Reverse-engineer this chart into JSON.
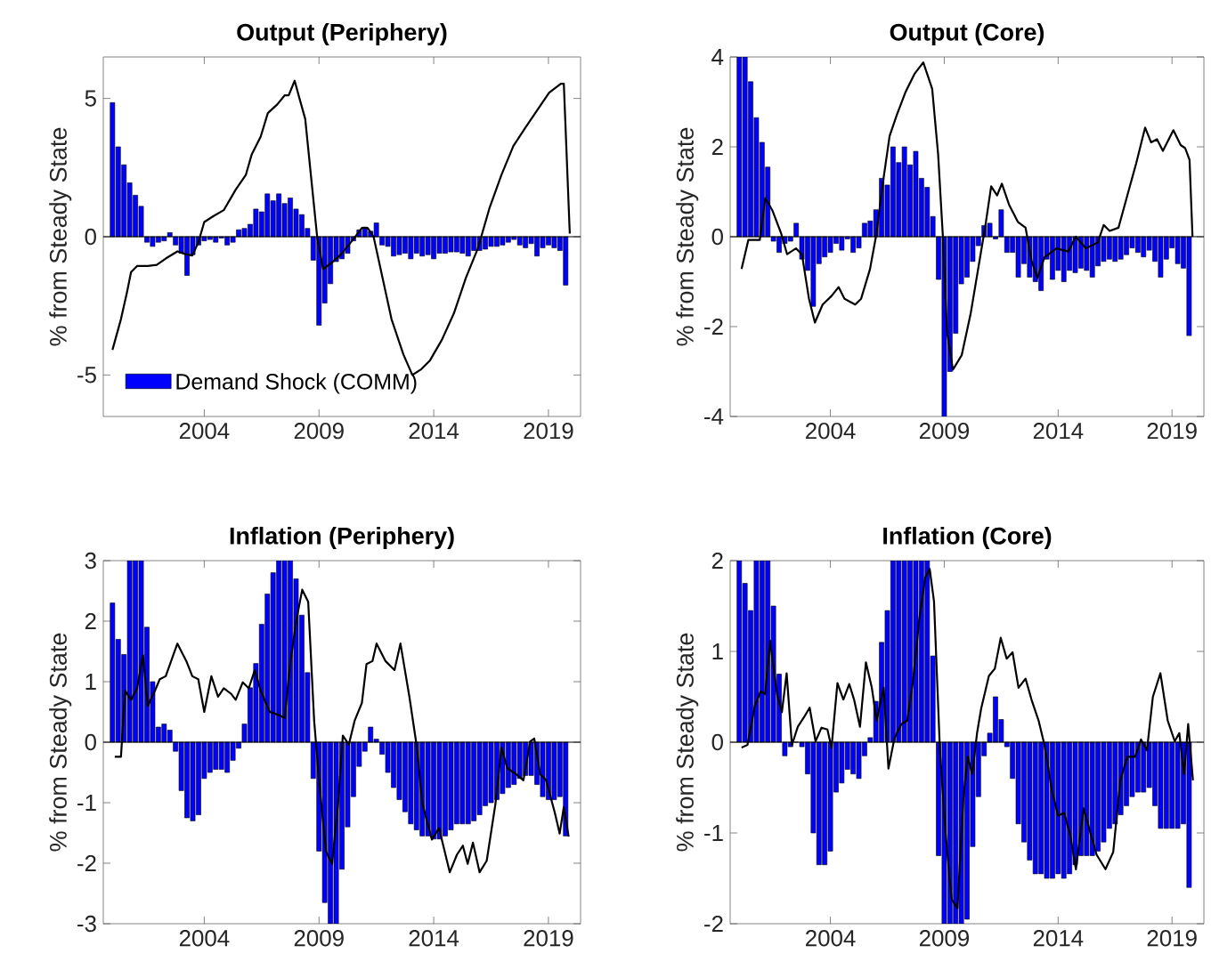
{
  "chart_data": [
    {
      "type": "bar",
      "title": "Output (Periphery)",
      "ylabel": "% from Steady State",
      "xlim": [
        1999.6,
        2020.4
      ],
      "ylim": [
        -6.5,
        6.5
      ],
      "xticks": [
        2004,
        2009,
        2014,
        2019
      ],
      "yticks": [
        -5,
        0,
        5
      ],
      "legend": "bottom left",
      "ref_lines": [
        {
          "axis": "y",
          "value": 0,
          "color": "#000000"
        }
      ],
      "x": [
        2000,
        2000.25,
        2000.5,
        2000.75,
        2001,
        2001.25,
        2001.5,
        2001.75,
        2002,
        2002.25,
        2002.5,
        2002.75,
        2003,
        2003.25,
        2003.5,
        2003.75,
        2004,
        2004.25,
        2004.5,
        2004.75,
        2005,
        2005.25,
        2005.5,
        2005.75,
        2006,
        2006.25,
        2006.5,
        2006.75,
        2007,
        2007.25,
        2007.5,
        2007.75,
        2008,
        2008.25,
        2008.5,
        2008.75,
        2009,
        2009.25,
        2009.5,
        2009.75,
        2010,
        2010.25,
        2010.5,
        2010.75,
        2011,
        2011.25,
        2011.5,
        2011.75,
        2012,
        2012.25,
        2012.5,
        2012.75,
        2013,
        2013.25,
        2013.5,
        2013.75,
        2014,
        2014.25,
        2014.5,
        2014.75,
        2015,
        2015.25,
        2015.5,
        2015.75,
        2016,
        2016.25,
        2016.5,
        2016.75,
        2017,
        2017.25,
        2017.5,
        2017.75,
        2018,
        2018.25,
        2018.5,
        2018.75,
        2019,
        2019.25,
        2019.5,
        2019.75
      ],
      "series": [
        {
          "name": "Demand Shock (COMM)",
          "color": "#0000ff",
          "values": [
            4.85,
            3.25,
            2.6,
            1.95,
            1.5,
            1.1,
            -0.2,
            -0.35,
            -0.2,
            -0.15,
            0.15,
            -0.3,
            -0.6,
            -1.4,
            -0.65,
            -0.3,
            -0.15,
            -0.1,
            -0.2,
            -0.05,
            -0.3,
            -0.2,
            0.25,
            0.3,
            0.45,
            1.0,
            0.9,
            1.55,
            1.3,
            1.55,
            1.2,
            1.4,
            1.0,
            0.8,
            0.3,
            -0.85,
            -3.2,
            -2.4,
            -1.7,
            -0.9,
            -0.8,
            -0.6,
            -0.15,
            0.25,
            0.35,
            0.2,
            0.5,
            -0.3,
            -0.35,
            -0.7,
            -0.65,
            -0.6,
            -0.8,
            -0.6,
            -0.7,
            -0.65,
            -0.8,
            -0.6,
            -0.6,
            -0.55,
            -0.55,
            -0.6,
            -0.7,
            -0.5,
            -0.5,
            -0.45,
            -0.35,
            -0.35,
            -0.3,
            -0.2,
            -0.1,
            -0.3,
            -0.4,
            -0.25,
            -0.7,
            -0.4,
            -0.3,
            -0.4,
            -0.5,
            -1.75
          ]
        },
        {
          "type": "line",
          "color": "#000000",
          "x": [
            2000.0,
            2000.37,
            2000.63,
            2000.81,
            2001.07,
            2001.54,
            2001.93,
            2002.32,
            2002.83,
            2003.22,
            2003.48,
            2003.74,
            2004.0,
            2004.39,
            2004.85,
            2005.37,
            2005.81,
            2006.07,
            2006.46,
            2006.77,
            2007.19,
            2007.5,
            2007.68,
            2007.94,
            2008.15,
            2008.4,
            2008.66,
            2008.92,
            2009.18,
            2009.52,
            2009.96,
            2010.48,
            2010.87,
            2011.12,
            2011.38,
            2011.77,
            2012.16,
            2012.68,
            2013.07,
            2013.46,
            2013.84,
            2014.36,
            2014.88,
            2015.4,
            2015.92,
            2016.44,
            2016.95,
            2017.47,
            2017.99,
            2018.51,
            2019.03,
            2019.54,
            2019.67,
            2019.93
          ],
          "values": [
            -4.09,
            -2.98,
            -2.02,
            -1.28,
            -1.06,
            -1.06,
            -1.02,
            -0.79,
            -0.53,
            -0.64,
            -0.68,
            -0.21,
            0.53,
            0.74,
            0.96,
            1.7,
            2.23,
            2.98,
            3.62,
            4.47,
            4.79,
            5.11,
            5.11,
            5.64,
            5.0,
            4.26,
            2.13,
            0,
            -1.17,
            -0.96,
            -0.64,
            -0.11,
            0.32,
            0.32,
            0,
            -1.49,
            -2.98,
            -4.26,
            -5.0,
            -4.79,
            -4.47,
            -3.72,
            -2.77,
            -1.49,
            -0.43,
            1.06,
            2.23,
            3.28,
            3.94,
            4.57,
            5.21,
            5.53,
            5.53,
            0.11
          ]
        }
      ]
    },
    {
      "type": "bar",
      "title": "Output (Core)",
      "ylabel": "% from Steady State",
      "xlim": [
        1999.6,
        2020.4
      ],
      "ylim": [
        -4,
        4
      ],
      "xticks": [
        2004,
        2009,
        2014,
        2019
      ],
      "yticks": [
        -4,
        -2,
        0,
        2,
        4
      ],
      "ref_lines": [
        {
          "axis": "y",
          "value": 0,
          "color": "#000000"
        }
      ],
      "x": [
        2000,
        2000.25,
        2000.5,
        2000.75,
        2001,
        2001.25,
        2001.5,
        2001.75,
        2002,
        2002.25,
        2002.5,
        2002.75,
        2003,
        2003.25,
        2003.5,
        2003.75,
        2004,
        2004.25,
        2004.5,
        2004.75,
        2005,
        2005.25,
        2005.5,
        2005.75,
        2006,
        2006.25,
        2006.5,
        2006.75,
        2007,
        2007.25,
        2007.5,
        2007.75,
        2008,
        2008.25,
        2008.5,
        2008.75,
        2009,
        2009.25,
        2009.5,
        2009.75,
        2010,
        2010.25,
        2010.5,
        2010.75,
        2011,
        2011.25,
        2011.5,
        2011.75,
        2012,
        2012.25,
        2012.5,
        2012.75,
        2013,
        2013.25,
        2013.5,
        2013.75,
        2014,
        2014.25,
        2014.5,
        2014.75,
        2015,
        2015.25,
        2015.5,
        2015.75,
        2016,
        2016.25,
        2016.5,
        2016.75,
        2017,
        2017.25,
        2017.5,
        2017.75,
        2018,
        2018.25,
        2018.5,
        2018.75,
        2019,
        2019.25,
        2019.5,
        2019.75
      ],
      "series": [
        {
          "color": "#0000ff",
          "values": [
            4,
            4,
            3.45,
            2.65,
            2.1,
            1.55,
            -0.1,
            -0.35,
            -0.15,
            -0.1,
            0.3,
            -0.5,
            -0.75,
            -1.55,
            -0.6,
            -0.45,
            -0.35,
            -0.15,
            -0.3,
            -0.05,
            -0.35,
            -0.25,
            0.3,
            0.35,
            0.6,
            1.3,
            1.15,
            2.0,
            1.65,
            2.0,
            1.6,
            1.9,
            1.3,
            1.1,
            0.45,
            -0.95,
            -4,
            -3.0,
            -2.15,
            -1.05,
            -0.9,
            -0.55,
            -0.2,
            0.25,
            0.3,
            -0.05,
            0.6,
            -0.35,
            -0.35,
            -0.9,
            -0.6,
            -0.9,
            -1.0,
            -1.2,
            -0.5,
            -0.95,
            -0.75,
            -1.0,
            -0.75,
            -0.8,
            -0.7,
            -0.75,
            -0.9,
            -0.65,
            -0.55,
            -0.5,
            -0.55,
            -0.5,
            -0.4,
            -0.25,
            -0.35,
            -0.45,
            -0.3,
            -0.55,
            -0.9,
            -0.5,
            -0.25,
            -0.6,
            -0.7,
            -2.2
          ]
        },
        {
          "type": "line",
          "color": "#000000",
          "x": [
            2000.1,
            2000.4,
            2000.9,
            2001.14,
            2001.45,
            2001.84,
            2002.1,
            2002.49,
            2002.75,
            2003.06,
            2003.32,
            2003.66,
            2004.05,
            2004.36,
            2004.62,
            2005.09,
            2005.35,
            2005.74,
            2006.0,
            2006.34,
            2006.6,
            2006.91,
            2007.3,
            2007.69,
            2008.08,
            2008.47,
            2008.73,
            2008.94,
            2009.12,
            2009.38,
            2009.77,
            2010.16,
            2010.55,
            2010.81,
            2011.06,
            2011.32,
            2011.53,
            2011.84,
            2012.23,
            2012.57,
            2012.83,
            2013.09,
            2013.4,
            2013.92,
            2014.44,
            2014.78,
            2015.22,
            2015.74,
            2016.0,
            2016.26,
            2016.65,
            2017.04,
            2017.43,
            2017.82,
            2018.08,
            2018.34,
            2018.6,
            2019.06,
            2019.38,
            2019.58,
            2019.77,
            2019.9
          ],
          "values": [
            -0.72,
            -0.07,
            -0.07,
            0.86,
            0.59,
            0.07,
            -0.39,
            -0.26,
            -0.39,
            -1.38,
            -1.91,
            -1.51,
            -1.32,
            -1.12,
            -1.38,
            -1.51,
            -1.38,
            -0.72,
            0,
            1.32,
            2.24,
            2.7,
            3.22,
            3.62,
            3.88,
            3.29,
            1.84,
            0,
            -2.1,
            -2.96,
            -2.63,
            -1.71,
            -0.53,
            0.26,
            1.12,
            0.92,
            1.18,
            0.72,
            0.33,
            0.2,
            -0.53,
            -0.92,
            -0.46,
            -0.26,
            -0.33,
            0,
            -0.26,
            -0.13,
            0.26,
            0.13,
            0.2,
            0.92,
            1.64,
            2.43,
            2.1,
            2.17,
            1.91,
            2.37,
            2.04,
            1.97,
            1.71,
            0
          ]
        }
      ]
    },
    {
      "type": "bar",
      "title": "Inflation (Periphery)",
      "ylabel": "% from Steady State",
      "xlim": [
        1999.6,
        2020.4
      ],
      "ylim": [
        -3,
        3
      ],
      "xticks": [
        2004,
        2009,
        2014,
        2019
      ],
      "yticks": [
        -3,
        -2,
        -1,
        0,
        1,
        2,
        3
      ],
      "ref_lines": [
        {
          "axis": "y",
          "value": 0,
          "color": "#000000"
        }
      ],
      "x": [
        2000,
        2000.25,
        2000.5,
        2000.75,
        2001,
        2001.25,
        2001.5,
        2001.75,
        2002,
        2002.25,
        2002.5,
        2002.75,
        2003,
        2003.25,
        2003.5,
        2003.75,
        2004,
        2004.25,
        2004.5,
        2004.75,
        2005,
        2005.25,
        2005.5,
        2005.75,
        2006,
        2006.25,
        2006.5,
        2006.75,
        2007,
        2007.25,
        2007.5,
        2007.75,
        2008,
        2008.25,
        2008.5,
        2008.75,
        2009,
        2009.25,
        2009.5,
        2009.75,
        2010,
        2010.25,
        2010.5,
        2010.75,
        2011,
        2011.25,
        2011.5,
        2011.75,
        2012,
        2012.25,
        2012.5,
        2012.75,
        2013,
        2013.25,
        2013.5,
        2013.75,
        2014,
        2014.25,
        2014.5,
        2014.75,
        2015,
        2015.25,
        2015.5,
        2015.75,
        2016,
        2016.25,
        2016.5,
        2016.75,
        2017,
        2017.25,
        2017.5,
        2017.75,
        2018,
        2018.25,
        2018.5,
        2018.75,
        2019,
        2019.25,
        2019.5,
        2019.75
      ],
      "series": [
        {
          "color": "#0000ff",
          "values": [
            2.3,
            1.7,
            1.45,
            3,
            3,
            3,
            1.9,
            1.0,
            0.25,
            0.3,
            0.2,
            -0.15,
            -0.8,
            -1.25,
            -1.3,
            -1.2,
            -0.6,
            -0.5,
            -0.45,
            -0.45,
            -0.5,
            -0.3,
            -0.1,
            0.3,
            0.9,
            1.3,
            1.95,
            2.45,
            2.8,
            3,
            3,
            3,
            2.7,
            2.1,
            1.15,
            -0.6,
            -1.8,
            -2.65,
            -3,
            -3,
            -2.1,
            -1.4,
            -0.9,
            -0.4,
            -0.15,
            0.25,
            0.05,
            -0.2,
            -0.5,
            -0.75,
            -0.95,
            -1.15,
            -1.35,
            -1.45,
            -1.55,
            -1.55,
            -1.6,
            -1.6,
            -1.55,
            -1.45,
            -1.35,
            -1.35,
            -1.35,
            -1.3,
            -1.2,
            -1.05,
            -1.0,
            -0.95,
            -0.85,
            -0.75,
            -0.7,
            -0.6,
            -0.55,
            -0.55,
            -0.7,
            -0.9,
            -0.95,
            -0.95,
            -0.9,
            -1.55
          ]
        },
        {
          "type": "line",
          "color": "#000000",
          "x": [
            2000.1,
            2000.37,
            2000.55,
            2000.81,
            2001.07,
            2001.33,
            2001.54,
            2001.85,
            2002.06,
            2002.32,
            2002.83,
            2003.22,
            2003.48,
            2003.74,
            2004.0,
            2004.31,
            2004.6,
            2004.85,
            2005.17,
            2005.37,
            2005.68,
            2005.94,
            2006.2,
            2006.46,
            2006.85,
            2007.24,
            2007.5,
            2007.76,
            2008.02,
            2008.27,
            2008.53,
            2008.79,
            2009.05,
            2009.31,
            2009.57,
            2009.83,
            2010.04,
            2010.3,
            2010.55,
            2010.87,
            2011.07,
            2011.33,
            2011.51,
            2011.9,
            2012.29,
            2012.55,
            2012.94,
            2013.25,
            2013.51,
            2013.92,
            2014.23,
            2014.7,
            2015.01,
            2015.27,
            2015.48,
            2015.71,
            2016.0,
            2016.31,
            2016.69,
            2016.95,
            2017.21,
            2017.6,
            2017.91,
            2018.2,
            2018.38,
            2018.64,
            2018.9,
            2019.28,
            2019.49,
            2019.67,
            2019.88
          ],
          "values": [
            -0.24,
            -0.24,
            0.85,
            0.7,
            0.89,
            1.44,
            0.6,
            0.85,
            1.04,
            1.09,
            1.63,
            1.34,
            1.09,
            1.04,
            0.5,
            1.09,
            0.75,
            0.89,
            0.8,
            0.7,
            0.99,
            0.89,
            1.19,
            0.85,
            0.5,
            0.45,
            0.4,
            1.34,
            2.03,
            2.52,
            2.32,
            0.35,
            -0.83,
            -1.81,
            -2.01,
            -1.02,
            0.11,
            -0.04,
            0.35,
            0.65,
            1.29,
            1.34,
            1.63,
            1.34,
            1.19,
            1.63,
            0.75,
            -0.04,
            -1.02,
            -1.61,
            -1.42,
            -2.15,
            -1.86,
            -1.71,
            -2.01,
            -1.66,
            -2.15,
            -1.96,
            -1.02,
            -0.09,
            -0.43,
            -0.53,
            -0.63,
            0.01,
            0.06,
            -0.53,
            -0.63,
            -1.17,
            -1.51,
            -1.07,
            -1.56
          ]
        }
      ]
    },
    {
      "type": "bar",
      "title": "Inflation (Core)",
      "ylabel": "% from Steady State",
      "xlim": [
        1999.6,
        2020.4
      ],
      "ylim": [
        -2,
        2
      ],
      "xticks": [
        2004,
        2009,
        2014,
        2019
      ],
      "yticks": [
        -2,
        -1,
        0,
        1,
        2
      ],
      "ref_lines": [
        {
          "axis": "y",
          "value": 0,
          "color": "#000000"
        }
      ],
      "x": [
        2000,
        2000.25,
        2000.5,
        2000.75,
        2001,
        2001.25,
        2001.5,
        2001.75,
        2002,
        2002.25,
        2002.5,
        2002.75,
        2003,
        2003.25,
        2003.5,
        2003.75,
        2004,
        2004.25,
        2004.5,
        2004.75,
        2005,
        2005.25,
        2005.5,
        2005.75,
        2006,
        2006.25,
        2006.5,
        2006.75,
        2007,
        2007.25,
        2007.5,
        2007.75,
        2008,
        2008.25,
        2008.5,
        2008.75,
        2009,
        2009.25,
        2009.5,
        2009.75,
        2010,
        2010.25,
        2010.5,
        2010.75,
        2011,
        2011.25,
        2011.5,
        2011.75,
        2012,
        2012.25,
        2012.5,
        2012.75,
        2013,
        2013.25,
        2013.5,
        2013.75,
        2014,
        2014.25,
        2014.5,
        2014.75,
        2015,
        2015.25,
        2015.5,
        2015.75,
        2016,
        2016.25,
        2016.5,
        2016.75,
        2017,
        2017.25,
        2017.5,
        2017.75,
        2018,
        2018.25,
        2018.5,
        2018.75,
        2019,
        2019.25,
        2019.5,
        2019.75
      ],
      "series": [
        {
          "color": "#0000ff",
          "values": [
            2,
            1.75,
            1.45,
            2,
            2,
            2,
            1.5,
            0.75,
            -0.15,
            -0.05,
            0,
            -0.05,
            -0.35,
            -1.0,
            -1.35,
            -1.35,
            -1.2,
            -0.55,
            -0.45,
            -0.3,
            -0.35,
            -0.4,
            -0.15,
            0.05,
            0.45,
            1.1,
            1.45,
            2,
            2,
            2,
            2,
            2,
            2,
            2,
            0.95,
            -1.25,
            -2,
            -2,
            -2,
            -2,
            -1.95,
            -1.15,
            -0.6,
            -0.15,
            0.1,
            0.5,
            0.25,
            -0.05,
            -0.4,
            -0.9,
            -1.1,
            -1.3,
            -1.45,
            -1.45,
            -1.5,
            -1.5,
            -1.45,
            -1.5,
            -1.45,
            -1.35,
            -1.25,
            -1.25,
            -1.25,
            -1.2,
            -1.1,
            -0.95,
            -0.9,
            -0.8,
            -0.7,
            -0.6,
            -0.55,
            -0.55,
            -0.5,
            -0.7,
            -0.95,
            -0.95,
            -0.95,
            -0.95,
            -0.9,
            -1.6
          ]
        },
        {
          "type": "line",
          "color": "#000000",
          "x": [
            2000.1,
            2000.36,
            2000.68,
            2000.94,
            2001.14,
            2001.35,
            2001.66,
            2001.87,
            2002.08,
            2002.31,
            2002.57,
            2002.83,
            2003.09,
            2003.35,
            2003.61,
            2003.87,
            2004.05,
            2004.31,
            2004.57,
            2004.83,
            2005.04,
            2005.3,
            2005.56,
            2005.82,
            2006.03,
            2006.34,
            2006.55,
            2006.81,
            2007.12,
            2007.38,
            2007.64,
            2007.9,
            2008.16,
            2008.36,
            2008.55,
            2008.81,
            2009.06,
            2009.32,
            2009.58,
            2009.84,
            2010.03,
            2010.23,
            2010.44,
            2010.62,
            2010.96,
            2011.22,
            2011.48,
            2011.74,
            2012.0,
            2012.26,
            2012.57,
            2012.83,
            2013.14,
            2013.4,
            2013.74,
            2014.0,
            2014.26,
            2014.52,
            2014.78,
            2015.12,
            2015.43,
            2015.69,
            2016.08,
            2016.42,
            2016.73,
            2017.04,
            2017.38,
            2017.64,
            2017.9,
            2018.16,
            2018.49,
            2018.81,
            2019.12,
            2019.32,
            2019.53,
            2019.71,
            2019.92
          ],
          "values": [
            -0.06,
            -0.03,
            0.4,
            0.56,
            0.53,
            1.12,
            0.53,
            0.33,
            0.76,
            -0.03,
            0.17,
            0.27,
            0.38,
            0.01,
            0.16,
            0.14,
            -0.06,
            0.65,
            0.47,
            0.64,
            0.47,
            0.17,
            0.88,
            0.6,
            0.24,
            0.6,
            -0.29,
            0.04,
            0.2,
            0.24,
            0.7,
            1.35,
            1.81,
            1.91,
            1.55,
            -0.09,
            -1.01,
            -1.73,
            -1.83,
            -0.62,
            -0.16,
            -0.35,
            0.1,
            0.37,
            0.73,
            0.81,
            1.15,
            0.92,
            0.99,
            0.6,
            0.7,
            0.47,
            0.24,
            -0.03,
            -0.55,
            -0.81,
            -0.78,
            -1.01,
            -1.4,
            -0.73,
            -1.01,
            -1.24,
            -1.4,
            -1.21,
            -0.42,
            -0.16,
            -0.16,
            0.03,
            -0.09,
            0.5,
            0.76,
            0.24,
            0.01,
            0.1,
            -0.35,
            0.2,
            -0.42
          ]
        }
      ]
    }
  ]
}
